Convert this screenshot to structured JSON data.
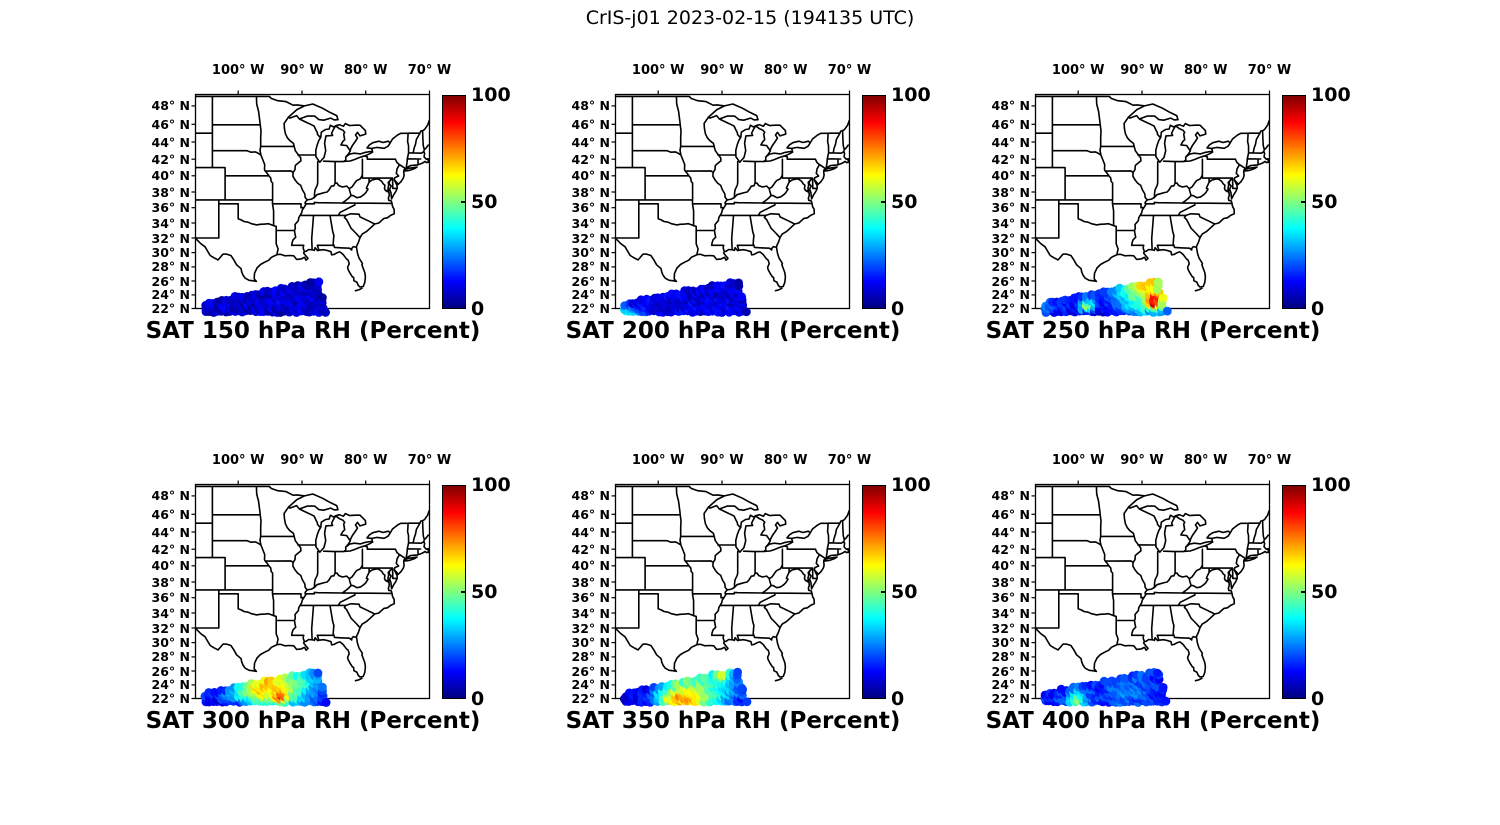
{
  "figure": {
    "title": "CrIS-j01 2023-02-15 (194135 UTC)",
    "background_color": "#ffffff",
    "satellite": "CrIS-j01",
    "date": "2023-02-15",
    "time_utc": "194135"
  },
  "axes": {
    "lon_tick_labels": [
      "100° W",
      "90° W",
      "80° W",
      "70° W"
    ],
    "lon_tick_values": [
      -100,
      -90,
      -80,
      -70
    ],
    "lat_tick_labels": [
      "48° N",
      "46° N",
      "44° N",
      "42° N",
      "40° N",
      "38° N",
      "36° N",
      "34° N",
      "32° N",
      "30° N",
      "28° N",
      "26° N",
      "24° N",
      "22° N"
    ],
    "lat_tick_values": [
      48,
      46,
      44,
      42,
      40,
      38,
      36,
      34,
      32,
      30,
      28,
      26,
      24,
      22
    ]
  },
  "colorbar": {
    "tick_labels": [
      "100",
      "50",
      "0"
    ],
    "tick_values": [
      100,
      50,
      0
    ],
    "min": 0,
    "max": 100,
    "colormap": "jet"
  },
  "panels": [
    {
      "id": "sat-150-rh",
      "title": "SAT 150 hPa RH (Percent)",
      "level_hpa": 150
    },
    {
      "id": "sat-200-rh",
      "title": "SAT 200 hPa RH (Percent)",
      "level_hpa": 200
    },
    {
      "id": "sat-250-rh",
      "title": "SAT 250 hPa RH (Percent)",
      "level_hpa": 250
    },
    {
      "id": "sat-300-rh",
      "title": "SAT 300 hPa RH (Percent)",
      "level_hpa": 300
    },
    {
      "id": "sat-350-rh",
      "title": "SAT 350 hPa RH (Percent)",
      "level_hpa": 350
    },
    {
      "id": "sat-400-rh",
      "title": "SAT 400 hPa RH (Percent)",
      "level_hpa": 400
    }
  ],
  "chart_data": {
    "type": "scatter",
    "title": "CrIS-j01 2023-02-15 (194135 UTC)",
    "subplot_grid": [
      2,
      3
    ],
    "value_label": "RH (Percent)",
    "value_range": [
      0,
      100
    ],
    "colormap": "jet",
    "map_extent": {
      "lon": [
        -106.7,
        -70.0
      ],
      "lat": [
        22.0,
        49.2
      ],
      "projection": "mercator"
    },
    "swath_geometry": {
      "comment": "Satellite scan wedge; estimated from pixels. Columns west to east, grid rows bottom(south) to top(north).",
      "lon_range": [
        -105.2,
        -86.15
      ],
      "bottom_lat": 21.55,
      "top_lat_range": [
        22.8,
        26.35
      ],
      "right_taper_start_lon": -87.6
    },
    "panels": [
      {
        "level_hpa": 150,
        "rh_grid": [
          [
            6,
            7,
            8,
            7,
            8,
            9,
            8,
            7,
            8,
            9,
            8,
            7
          ],
          [
            7,
            8,
            9,
            8,
            7,
            8,
            9,
            8,
            7,
            8,
            9,
            8
          ],
          [
            8,
            7,
            8,
            9,
            8,
            7,
            8,
            9,
            8,
            7,
            8,
            7
          ],
          [
            7,
            8,
            7,
            8,
            9,
            8,
            7,
            8,
            9,
            8,
            7,
            6
          ],
          [
            6,
            7,
            8,
            7,
            8,
            7,
            8,
            7,
            8,
            7,
            6,
            6
          ]
        ]
      },
      {
        "level_hpa": 200,
        "rh_grid": [
          [
            38,
            30,
            14,
            10,
            9,
            10,
            10,
            9,
            10,
            11,
            10,
            9
          ],
          [
            35,
            25,
            12,
            10,
            9,
            10,
            11,
            10,
            9,
            10,
            10,
            9
          ],
          [
            28,
            18,
            11,
            9,
            10,
            9,
            10,
            10,
            9,
            10,
            9,
            8
          ],
          [
            18,
            12,
            10,
            9,
            9,
            10,
            9,
            10,
            10,
            9,
            9,
            8
          ],
          [
            12,
            10,
            9,
            9,
            10,
            9,
            9,
            10,
            9,
            9,
            8,
            8
          ]
        ]
      },
      {
        "level_hpa": 250,
        "rh_grid": [
          [
            18,
            14,
            12,
            12,
            12,
            10,
            12,
            18,
            25,
            30,
            28,
            20
          ],
          [
            22,
            16,
            14,
            14,
            60,
            12,
            15,
            25,
            35,
            45,
            95,
            30
          ],
          [
            26,
            18,
            15,
            15,
            55,
            14,
            18,
            30,
            40,
            50,
            100,
            35
          ],
          [
            22,
            16,
            14,
            14,
            28,
            15,
            22,
            35,
            45,
            55,
            60,
            30
          ],
          [
            18,
            14,
            12,
            12,
            18,
            16,
            25,
            40,
            50,
            75,
            70,
            25
          ]
        ]
      },
      {
        "level_hpa": 300,
        "rh_grid": [
          [
            12,
            10,
            14,
            20,
            30,
            45,
            40,
            50,
            35,
            30,
            20,
            15
          ],
          [
            14,
            12,
            18,
            30,
            40,
            55,
            60,
            95,
            45,
            35,
            25,
            18
          ],
          [
            16,
            14,
            22,
            35,
            50,
            65,
            62,
            70,
            55,
            40,
            30,
            20
          ],
          [
            14,
            12,
            25,
            40,
            55,
            70,
            65,
            60,
            50,
            45,
            28,
            18
          ],
          [
            12,
            10,
            20,
            35,
            45,
            60,
            70,
            55,
            45,
            35,
            22,
            15
          ]
        ]
      },
      {
        "level_hpa": 350,
        "rh_grid": [
          [
            8,
            9,
            12,
            30,
            60,
            70,
            65,
            55,
            40,
            30,
            22,
            14
          ],
          [
            9,
            10,
            14,
            35,
            65,
            75,
            70,
            60,
            45,
            35,
            25,
            16
          ],
          [
            10,
            11,
            16,
            32,
            55,
            65,
            60,
            55,
            42,
            38,
            26,
            16
          ],
          [
            9,
            10,
            14,
            28,
            45,
            55,
            52,
            48,
            40,
            42,
            24,
            15
          ],
          [
            8,
            9,
            12,
            22,
            38,
            48,
            45,
            42,
            38,
            68,
            22,
            13
          ]
        ]
      },
      {
        "level_hpa": 400,
        "rh_grid": [
          [
            14,
            16,
            20,
            52,
            22,
            16,
            18,
            22,
            20,
            18,
            16,
            14
          ],
          [
            15,
            17,
            22,
            55,
            25,
            18,
            20,
            25,
            22,
            20,
            17,
            15
          ],
          [
            14,
            16,
            18,
            45,
            22,
            17,
            22,
            28,
            25,
            22,
            18,
            15
          ],
          [
            13,
            15,
            16,
            30,
            20,
            16,
            20,
            25,
            22,
            20,
            17,
            14
          ],
          [
            12,
            14,
            15,
            20,
            18,
            15,
            18,
            22,
            20,
            18,
            16,
            13
          ]
        ]
      }
    ]
  }
}
